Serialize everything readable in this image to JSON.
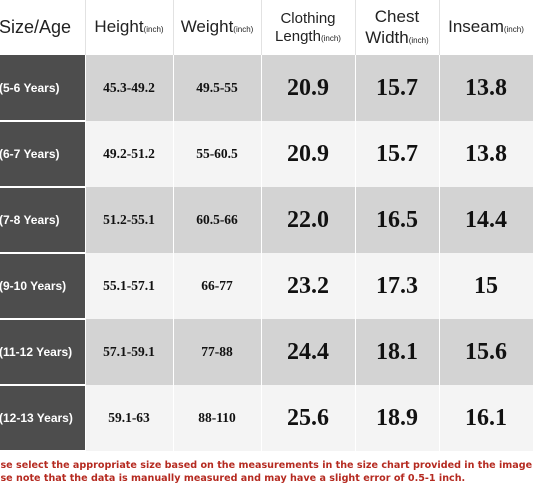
{
  "colors": {
    "size_col_bg": "#4d4d4d",
    "shaded_row": "#d3d3d3",
    "plain_row": "#f4f4f4",
    "note_text": "#b52a20"
  },
  "header": {
    "size": "Size/Age",
    "height": "Height",
    "height_unit": "(inch)",
    "weight": "Weight",
    "weight_unit": "(inch)",
    "length_line1": "Clothing",
    "length_line2": "Length",
    "length_unit": "(inch)",
    "chest_line1": "Chest",
    "chest_line2": "Width",
    "chest_unit": "(inch)",
    "inseam": "Inseam",
    "inseam_unit": "(inch)"
  },
  "rows": [
    {
      "size": "(5-6 Years)",
      "height": "45.3-49.2",
      "weight": "49.5-55",
      "length": "20.9",
      "chest": "15.7",
      "inseam": "13.8"
    },
    {
      "size": "(6-7 Years)",
      "height": "49.2-51.2",
      "weight": "55-60.5",
      "length": "20.9",
      "chest": "15.7",
      "inseam": "13.8"
    },
    {
      "size": "(7-8 Years)",
      "height": "51.2-55.1",
      "weight": "60.5-66",
      "length": "22.0",
      "chest": "16.5",
      "inseam": "14.4"
    },
    {
      "size": "(9-10 Years)",
      "height": "55.1-57.1",
      "weight": "66-77",
      "length": "23.2",
      "chest": "17.3",
      "inseam": "15"
    },
    {
      "size": "(11-12 Years)",
      "height": "57.1-59.1",
      "weight": "77-88",
      "length": "24.4",
      "chest": "18.1",
      "inseam": "15.6"
    },
    {
      "size": "(12-13 Years)",
      "height": "59.1-63",
      "weight": "88-110",
      "length": "25.6",
      "chest": "18.9",
      "inseam": "16.1"
    }
  ],
  "notes": {
    "line1": "ase select the appropriate size based on the measurements in the size chart provided in the image.",
    "line2": "ase note that the data is manually measured and may have a slight error of 0.5-1 inch."
  }
}
